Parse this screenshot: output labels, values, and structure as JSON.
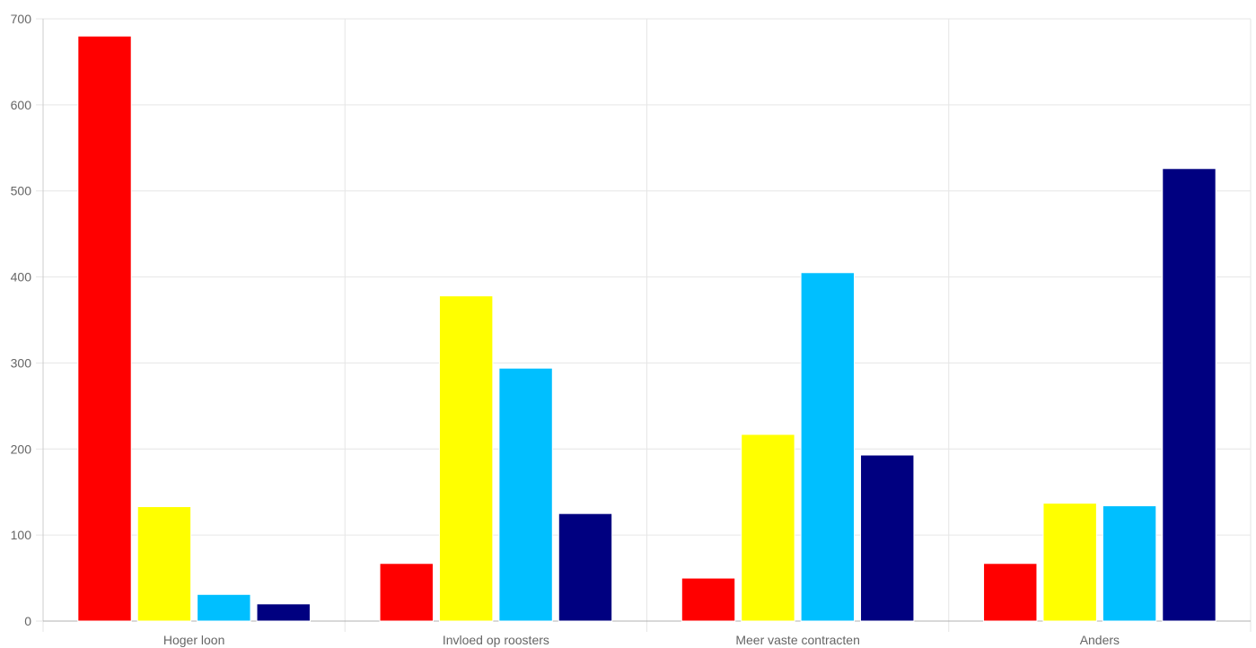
{
  "chart_data": {
    "type": "bar",
    "title": "",
    "xlabel": "",
    "ylabel": "",
    "ylim": [
      0,
      700
    ],
    "yticks": [
      0,
      100,
      200,
      300,
      400,
      500,
      600,
      700
    ],
    "grid": true,
    "legend": "none",
    "categories": [
      "Hoger loon",
      "Invloed op roosters",
      "Meer vaste contracten",
      "Anders"
    ],
    "series": [
      {
        "color": "#ff0000",
        "values": [
          680,
          67,
          50,
          67
        ]
      },
      {
        "color": "#ffff00",
        "values": [
          133,
          378,
          217,
          137
        ]
      },
      {
        "color": "#00bfff",
        "values": [
          31,
          294,
          405,
          134
        ]
      },
      {
        "color": "#000080",
        "values": [
          20,
          125,
          193,
          526
        ]
      }
    ]
  }
}
